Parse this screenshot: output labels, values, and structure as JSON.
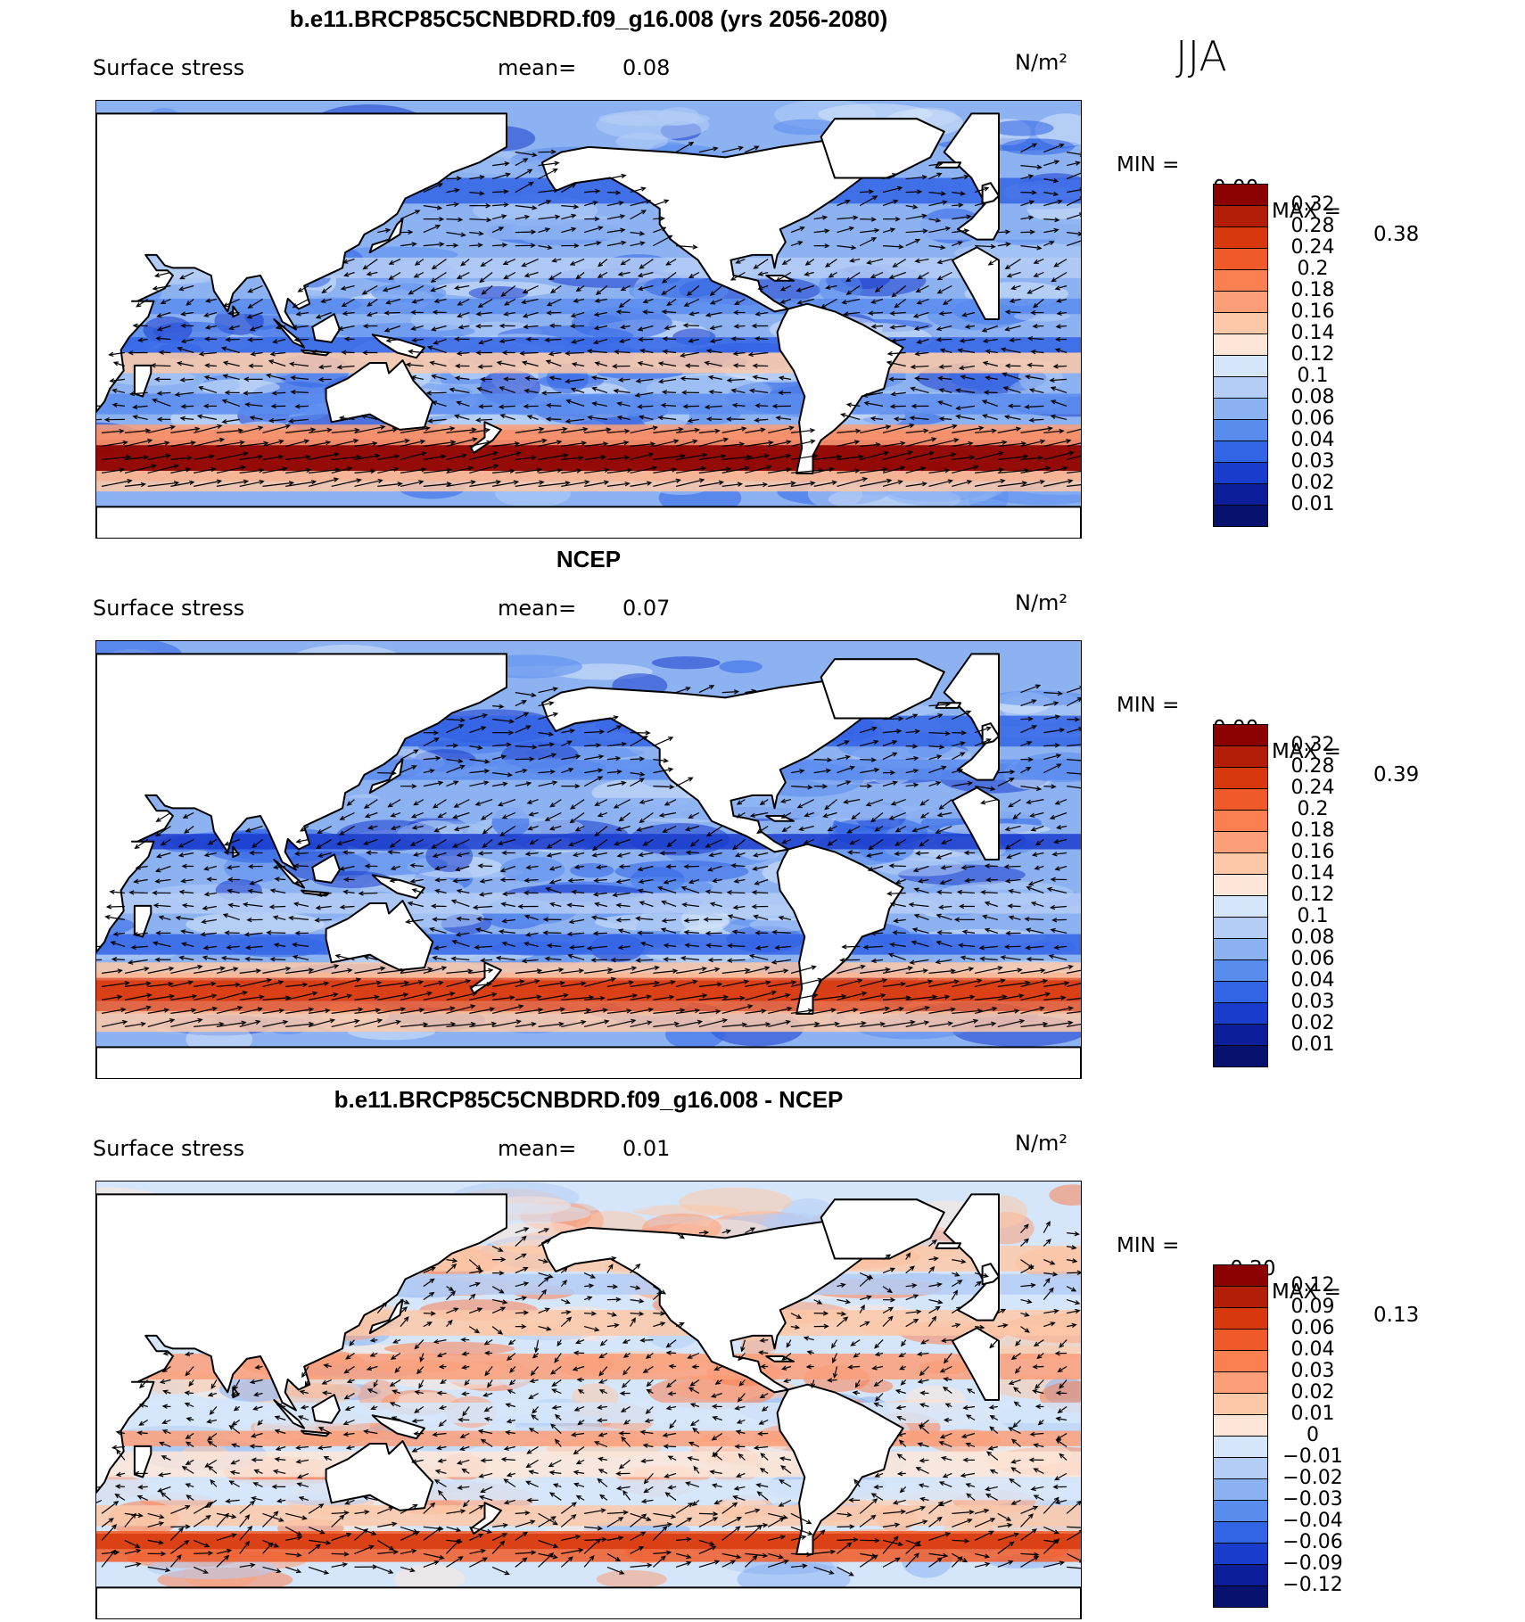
{
  "season": "JJA",
  "colors": {
    "land": "#ffffff",
    "coast": "#000000",
    "arrow": "#000000"
  },
  "panels": [
    {
      "title": "b.e11.BRCP85C5CNBDRD.f09_g16.008 (yrs 2056-2080)",
      "field_label": "Surface stress",
      "mean_label": "mean=",
      "mean_value": "0.08",
      "units": "N/m²",
      "min_label": "MIN =",
      "min_value": "0.00",
      "max_label": "MAX =",
      "max_value": "0.38",
      "colorbar": {
        "labels": [
          "0.32",
          "0.28",
          "0.24",
          "0.2",
          "0.18",
          "0.16",
          "0.14",
          "0.12",
          "0.1",
          "0.08",
          "0.06",
          "0.04",
          "0.03",
          "0.02",
          "0.01"
        ],
        "colors": [
          "#8b0000",
          "#b21e08",
          "#d8380e",
          "#f05a28",
          "#fa8052",
          "#fc9e78",
          "#fdc8a8",
          "#fde6d8",
          "#d6e6fa",
          "#b4cdf6",
          "#8cb2f2",
          "#5a8cee",
          "#3264e6",
          "#1a3ccc",
          "#0c1e99",
          "#06126e"
        ]
      }
    },
    {
      "title": "NCEP",
      "field_label": "Surface stress",
      "mean_label": "mean=",
      "mean_value": "0.07",
      "units": "N/m²",
      "min_label": "MIN =",
      "min_value": "0.00",
      "max_label": "MAX =",
      "max_value": "0.39",
      "colorbar": {
        "labels": [
          "0.32",
          "0.28",
          "0.24",
          "0.2",
          "0.18",
          "0.16",
          "0.14",
          "0.12",
          "0.1",
          "0.08",
          "0.06",
          "0.04",
          "0.03",
          "0.02",
          "0.01"
        ],
        "colors": [
          "#8b0000",
          "#b21e08",
          "#d8380e",
          "#f05a28",
          "#fa8052",
          "#fc9e78",
          "#fdc8a8",
          "#fde6d8",
          "#d6e6fa",
          "#b4cdf6",
          "#8cb2f2",
          "#5a8cee",
          "#3264e6",
          "#1a3ccc",
          "#0c1e99",
          "#06126e"
        ]
      }
    },
    {
      "title": "b.e11.BRCP85C5CNBDRD.f09_g16.008 - NCEP",
      "field_label": "Surface stress",
      "mean_label": "mean=",
      "mean_value": "0.01",
      "units": "N/m²",
      "min_label": "MIN =",
      "min_value": "−0.20",
      "max_label": "MAX =",
      "max_value": "0.13",
      "colorbar": {
        "labels": [
          "0.12",
          "0.09",
          "0.06",
          "0.04",
          "0.03",
          "0.02",
          "0.01",
          "0",
          "−0.01",
          "−0.02",
          "−0.03",
          "−0.04",
          "−0.06",
          "−0.09",
          "−0.12"
        ],
        "colors": [
          "#8b0000",
          "#b21e08",
          "#d8380e",
          "#f05a28",
          "#fa8052",
          "#fc9e78",
          "#fdc8a8",
          "#fde6d8",
          "#d6e6fa",
          "#b4cdf6",
          "#8cb2f2",
          "#5a8cee",
          "#3264e6",
          "#1a3ccc",
          "#0c1e99",
          "#06126e"
        ]
      }
    }
  ]
}
